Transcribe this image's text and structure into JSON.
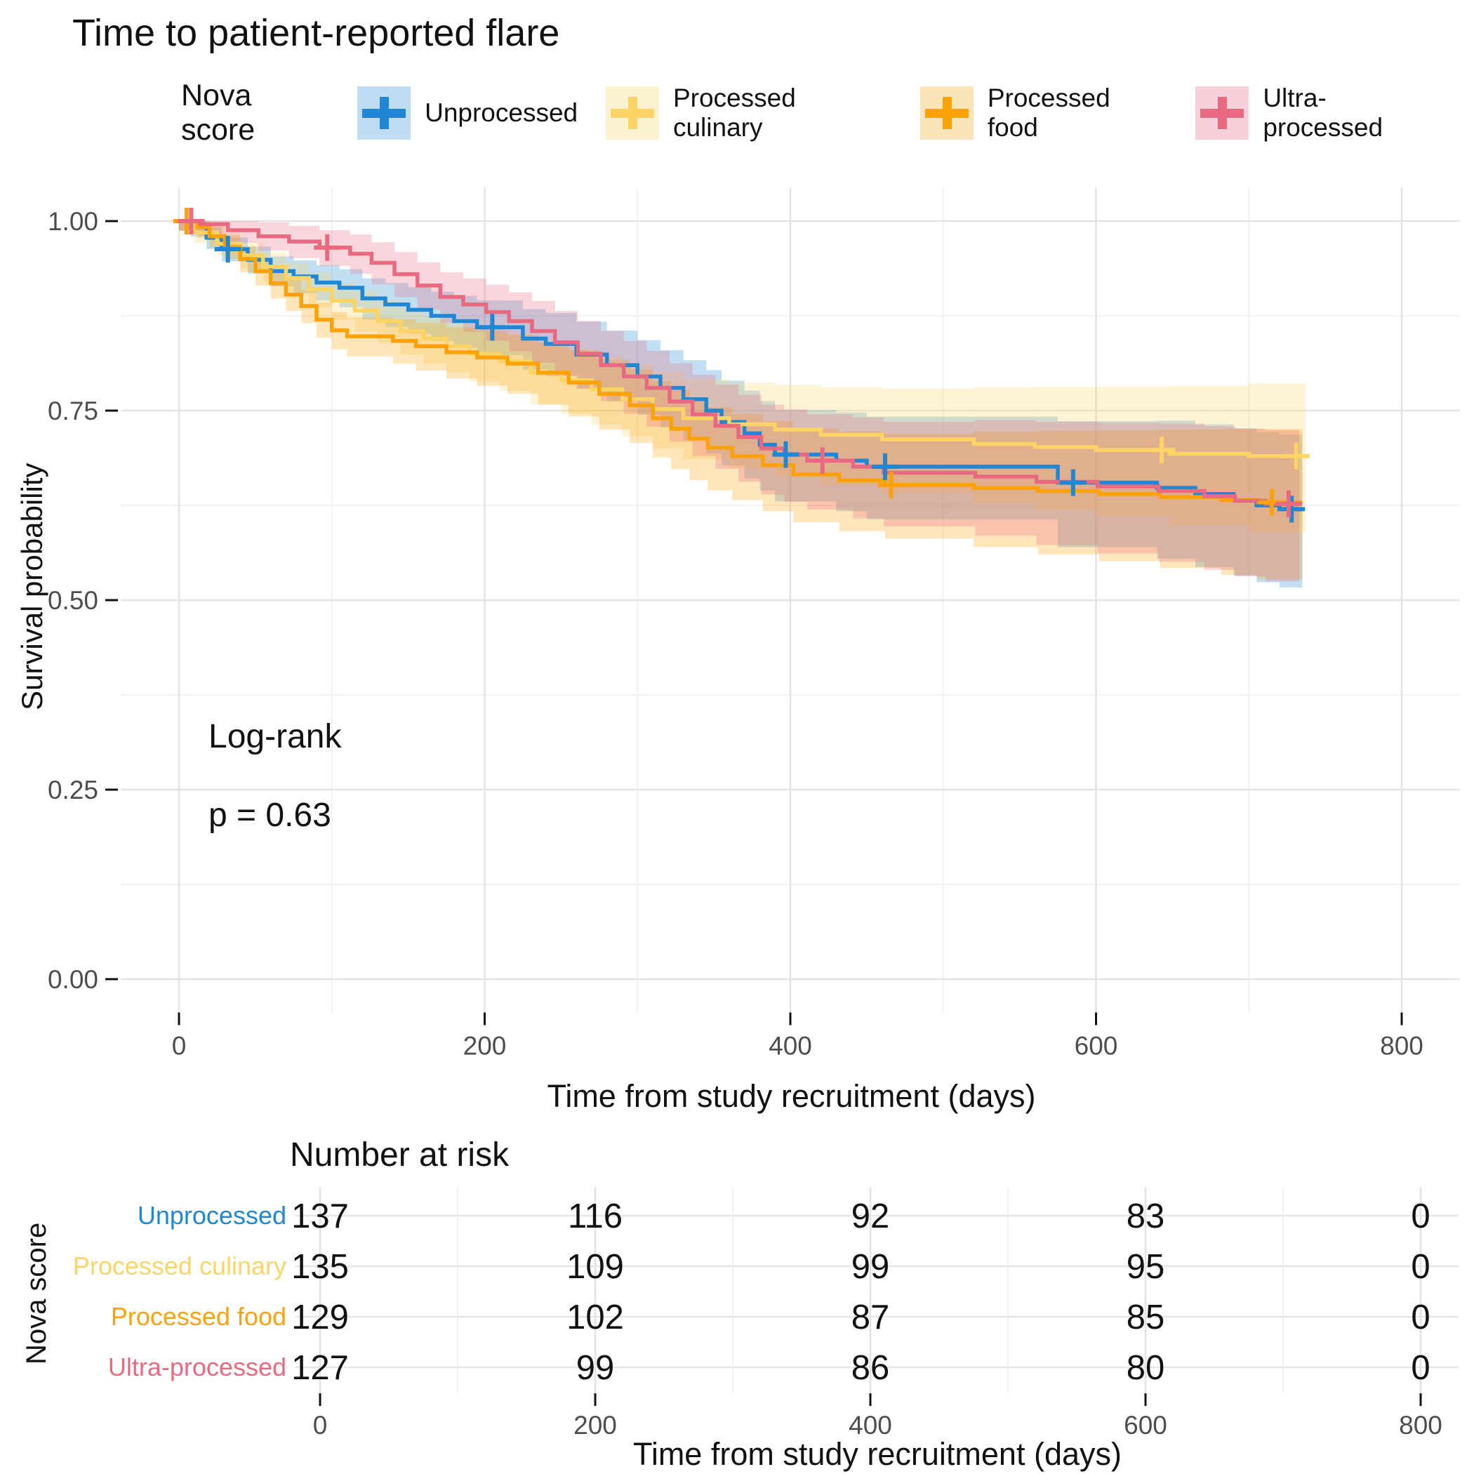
{
  "title": "Time to patient-reported flare",
  "legend": {
    "title": "Nova score"
  },
  "plot": {
    "ylabel": "Survival probability",
    "xlabel": "Time from study recruitment (days)",
    "annotation": {
      "line1": "Log-rank",
      "line2": "p = 0.63"
    }
  },
  "chart_data": {
    "type": "line",
    "subtype": "kaplan-meier-step",
    "title": "Time to patient-reported flare",
    "xlabel": "Time from study recruitment (days)",
    "ylabel": "Survival probability",
    "xlim": [
      0,
      800
    ],
    "ylim": [
      0.0,
      1.0
    ],
    "grid": "on",
    "legend_position": "top",
    "x_ticks": [
      0,
      200,
      400,
      600,
      800
    ],
    "y_ticks": [
      {
        "value": 1.0,
        "label": "1.00"
      },
      {
        "value": 0.75,
        "label": "0.75"
      },
      {
        "value": 0.5,
        "label": "0.50"
      },
      {
        "value": 0.25,
        "label": "0.25"
      },
      {
        "value": 0.0,
        "label": "0.00"
      }
    ],
    "annotations": [
      "Log-rank",
      "p = 0.63"
    ],
    "series": [
      {
        "name": "Unprocessed",
        "color": "#1F87D4",
        "key_fill": "#BEDDF3",
        "steps": [
          [
            0,
            1
          ],
          [
            8,
            0.993
          ],
          [
            18,
            0.978
          ],
          [
            28,
            0.963
          ],
          [
            45,
            0.949
          ],
          [
            60,
            0.934
          ],
          [
            75,
            0.927
          ],
          [
            90,
            0.919
          ],
          [
            105,
            0.912
          ],
          [
            120,
            0.898
          ],
          [
            135,
            0.89
          ],
          [
            150,
            0.883
          ],
          [
            165,
            0.875
          ],
          [
            180,
            0.868
          ],
          [
            195,
            0.86
          ],
          [
            225,
            0.845
          ],
          [
            240,
            0.838
          ],
          [
            260,
            0.824
          ],
          [
            280,
            0.81
          ],
          [
            300,
            0.795
          ],
          [
            315,
            0.78
          ],
          [
            330,
            0.765
          ],
          [
            345,
            0.75
          ],
          [
            355,
            0.735
          ],
          [
            370,
            0.72
          ],
          [
            380,
            0.705
          ],
          [
            390,
            0.692
          ],
          [
            430,
            0.684
          ],
          [
            450,
            0.676
          ],
          [
            575,
            0.655
          ],
          [
            640,
            0.648
          ],
          [
            665,
            0.64
          ],
          [
            690,
            0.632
          ],
          [
            705,
            0.625
          ],
          [
            720,
            0.62
          ],
          [
            735,
            0.62
          ]
        ],
        "censors": [
          [
            32,
            0.963
          ],
          [
            205,
            0.86
          ],
          [
            397,
            0.692
          ],
          [
            462,
            0.676
          ],
          [
            585,
            0.655
          ],
          [
            728,
            0.62
          ]
        ]
      },
      {
        "name": "Processed culinary",
        "color": "#FBD466",
        "key_fill": "#FCF1D1",
        "steps": [
          [
            0,
            1
          ],
          [
            10,
            0.985
          ],
          [
            25,
            0.97
          ],
          [
            40,
            0.955
          ],
          [
            55,
            0.94
          ],
          [
            70,
            0.925
          ],
          [
            85,
            0.91
          ],
          [
            100,
            0.895
          ],
          [
            115,
            0.882
          ],
          [
            130,
            0.868
          ],
          [
            145,
            0.855
          ],
          [
            160,
            0.845
          ],
          [
            175,
            0.835
          ],
          [
            190,
            0.825
          ],
          [
            210,
            0.815
          ],
          [
            230,
            0.8
          ],
          [
            250,
            0.79
          ],
          [
            270,
            0.778
          ],
          [
            290,
            0.765
          ],
          [
            310,
            0.752
          ],
          [
            330,
            0.74
          ],
          [
            360,
            0.732
          ],
          [
            390,
            0.725
          ],
          [
            420,
            0.718
          ],
          [
            460,
            0.712
          ],
          [
            520,
            0.706
          ],
          [
            560,
            0.702
          ],
          [
            600,
            0.698
          ],
          [
            648,
            0.693
          ],
          [
            700,
            0.69
          ],
          [
            737,
            0.69
          ]
        ],
        "censors": [
          [
            643,
            0.698
          ],
          [
            731,
            0.69
          ]
        ]
      },
      {
        "name": "Processed food",
        "color": "#FCA208",
        "key_fill": "#FBE3BA",
        "steps": [
          [
            0,
            1
          ],
          [
            12,
            0.992
          ],
          [
            20,
            0.98
          ],
          [
            30,
            0.966
          ],
          [
            40,
            0.95
          ],
          [
            50,
            0.934
          ],
          [
            60,
            0.918
          ],
          [
            70,
            0.903
          ],
          [
            80,
            0.888
          ],
          [
            90,
            0.87
          ],
          [
            100,
            0.856
          ],
          [
            110,
            0.848
          ],
          [
            140,
            0.842
          ],
          [
            155,
            0.835
          ],
          [
            175,
            0.827
          ],
          [
            195,
            0.82
          ],
          [
            215,
            0.812
          ],
          [
            235,
            0.8
          ],
          [
            255,
            0.787
          ],
          [
            275,
            0.772
          ],
          [
            295,
            0.757
          ],
          [
            310,
            0.74
          ],
          [
            322,
            0.726
          ],
          [
            334,
            0.713
          ],
          [
            346,
            0.701
          ],
          [
            362,
            0.69
          ],
          [
            382,
            0.678
          ],
          [
            402,
            0.666
          ],
          [
            432,
            0.658
          ],
          [
            462,
            0.652
          ],
          [
            520,
            0.648
          ],
          [
            562,
            0.644
          ],
          [
            602,
            0.64
          ],
          [
            642,
            0.636
          ],
          [
            682,
            0.632
          ],
          [
            706,
            0.629
          ],
          [
            735,
            0.629
          ]
        ],
        "censors": [
          [
            5,
            1.0
          ],
          [
            466,
            0.652
          ],
          [
            715,
            0.629
          ]
        ]
      },
      {
        "name": "Ultra-processed",
        "color": "#E86A80",
        "key_fill": "#F8D0DA",
        "steps": [
          [
            0,
            1
          ],
          [
            14,
            0.996
          ],
          [
            32,
            0.988
          ],
          [
            52,
            0.98
          ],
          [
            72,
            0.973
          ],
          [
            92,
            0.965
          ],
          [
            112,
            0.957
          ],
          [
            126,
            0.945
          ],
          [
            141,
            0.93
          ],
          [
            156,
            0.915
          ],
          [
            171,
            0.9
          ],
          [
            186,
            0.89
          ],
          [
            201,
            0.88
          ],
          [
            216,
            0.868
          ],
          [
            231,
            0.855
          ],
          [
            246,
            0.84
          ],
          [
            261,
            0.825
          ],
          [
            276,
            0.81
          ],
          [
            291,
            0.795
          ],
          [
            306,
            0.78
          ],
          [
            321,
            0.762
          ],
          [
            336,
            0.745
          ],
          [
            351,
            0.73
          ],
          [
            366,
            0.715
          ],
          [
            381,
            0.7
          ],
          [
            396,
            0.692
          ],
          [
            411,
            0.684
          ],
          [
            441,
            0.676
          ],
          [
            461,
            0.668
          ],
          [
            521,
            0.663
          ],
          [
            561,
            0.656
          ],
          [
            601,
            0.65
          ],
          [
            641,
            0.644
          ],
          [
            671,
            0.637
          ],
          [
            691,
            0.631
          ],
          [
            711,
            0.627
          ],
          [
            733,
            0.627
          ]
        ],
        "censors": [
          [
            8,
            1.0
          ],
          [
            97,
            0.965
          ],
          [
            421,
            0.684
          ],
          [
            726,
            0.627
          ]
        ]
      }
    ]
  },
  "risk_table": {
    "title": "Number at risk",
    "ylabel": "Nova score",
    "xlabel": "Time from study recruitment (days)",
    "times": [
      0,
      200,
      400,
      600,
      800
    ],
    "rows": [
      {
        "label": "Unprocessed",
        "color": "#1F87D4",
        "counts": [
          "137",
          "116",
          "92",
          "83",
          "0"
        ]
      },
      {
        "label": "Processed culinary",
        "color": "#FBD466",
        "counts": [
          "135",
          "109",
          "99",
          "95",
          "0"
        ]
      },
      {
        "label": "Processed food",
        "color": "#FCA208",
        "counts": [
          "129",
          "102",
          "87",
          "85",
          "0"
        ]
      },
      {
        "label": "Ultra-processed",
        "color": "#E86A80",
        "counts": [
          "127",
          "99",
          "86",
          "80",
          "0"
        ]
      }
    ]
  }
}
